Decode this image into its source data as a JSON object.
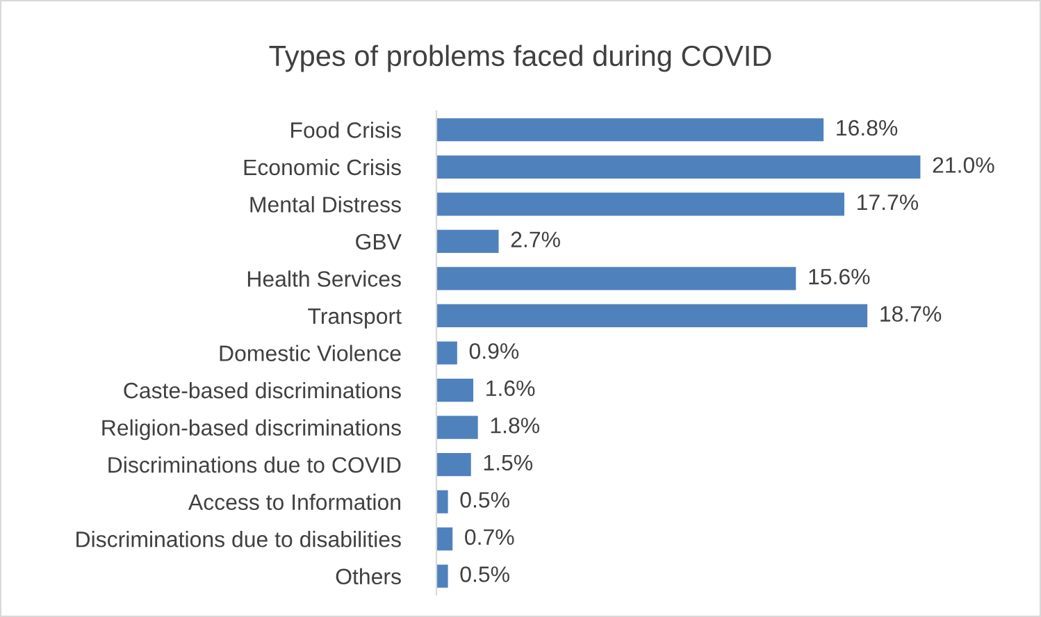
{
  "chart_data": {
    "type": "bar",
    "orientation": "horizontal",
    "title": "Types of problems faced during COVID",
    "categories": [
      "Food Crisis",
      "Economic Crisis",
      "Mental Distress",
      "GBV",
      "Health Services",
      "Transport",
      "Domestic Violence",
      "Caste-based discriminations",
      "Religion-based discriminations",
      "Discriminations due to COVID",
      "Access to Information",
      "Discriminations due to disabilities",
      "Others"
    ],
    "values": [
      16.8,
      21.0,
      17.7,
      2.7,
      15.6,
      18.7,
      0.9,
      1.6,
      1.8,
      1.5,
      0.5,
      0.7,
      0.5
    ],
    "value_labels": [
      "16.8%",
      "21.0%",
      "17.7%",
      "2.7%",
      "15.6%",
      "18.7%",
      "0.9%",
      "1.6%",
      "1.8%",
      "1.5%",
      "0.5%",
      "0.7%",
      "0.5%"
    ],
    "color": "#4f81bd",
    "grid": false,
    "legend": false
  }
}
